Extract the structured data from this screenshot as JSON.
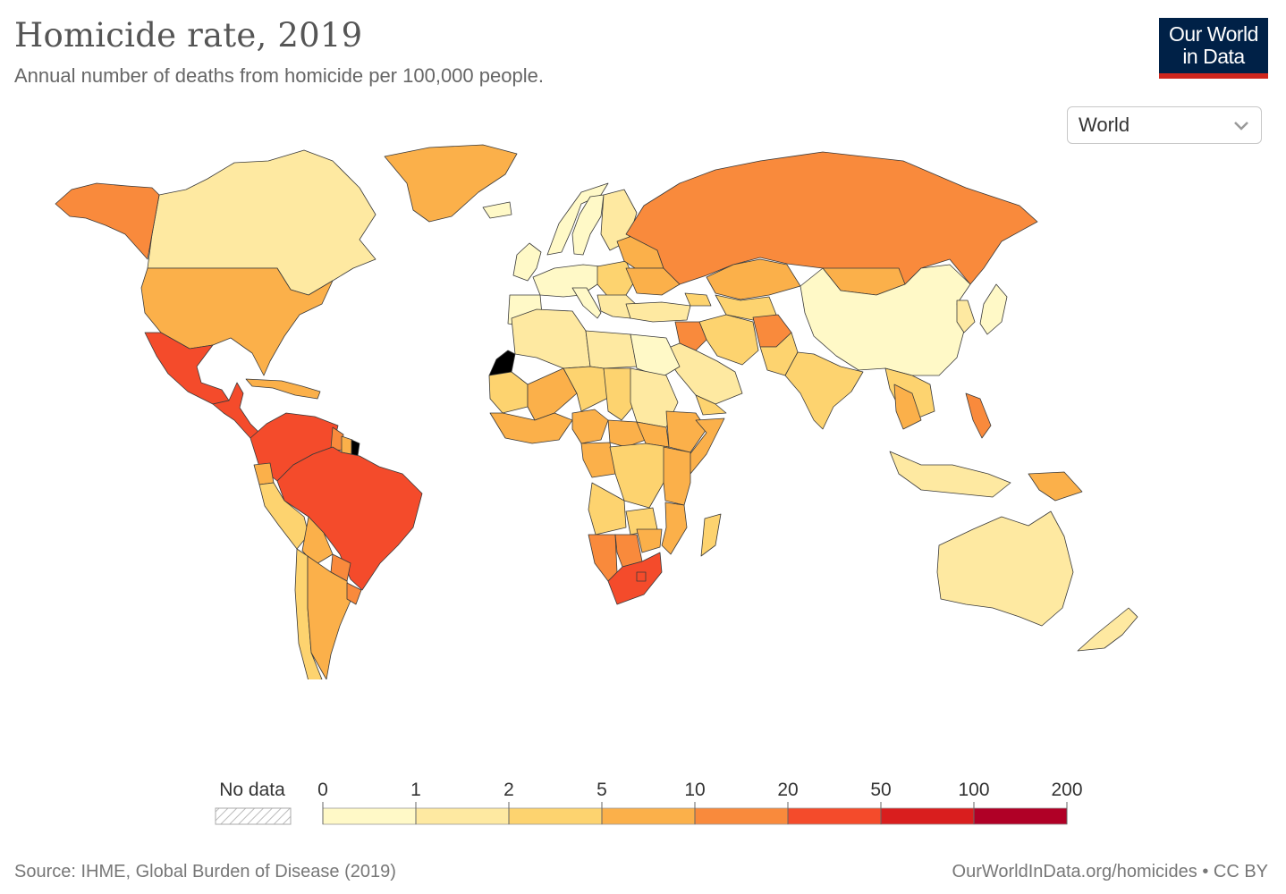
{
  "header": {
    "title": "Homicide rate, 2019",
    "subtitle": "Annual number of deaths from homicide per 100,000 people."
  },
  "logo": {
    "line1": "Our World",
    "line2": "in Data"
  },
  "region_select": {
    "value": "World",
    "icon": "chevron-down-icon"
  },
  "legend": {
    "no_data_label": "No data",
    "bins": [
      "0",
      "1",
      "2",
      "5",
      "10",
      "20",
      "50",
      "100",
      "200"
    ],
    "colors": [
      "#fff9c7",
      "#fee9a1",
      "#fdd36f",
      "#fbb04a",
      "#f98a3c",
      "#f44b2b",
      "#d91e1e",
      "#b00026"
    ]
  },
  "footer": {
    "source": "Source: IHME, Global Burden of Disease (2019)",
    "url": "OurWorldInData.org/homicides",
    "license": "CC BY"
  },
  "colors": {
    "no_data_fill": "#000000",
    "border": "#3a3a3a"
  },
  "map_regions": [
    {
      "name": "Canada",
      "bin": 1
    },
    {
      "name": "Alaska",
      "bin": 4
    },
    {
      "name": "Greenland",
      "bin": 3
    },
    {
      "name": "United States",
      "bin": 3
    },
    {
      "name": "Mexico",
      "bin": 5
    },
    {
      "name": "Central America",
      "bin": 5
    },
    {
      "name": "Caribbean",
      "bin": 3
    },
    {
      "name": "Venezuela & Colombia",
      "bin": 5
    },
    {
      "name": "Guyana",
      "bin": 4
    },
    {
      "name": "Suriname",
      "bin": 3
    },
    {
      "name": "French Guiana",
      "bin": -1
    },
    {
      "name": "Brazil",
      "bin": 5
    },
    {
      "name": "Ecuador",
      "bin": 3
    },
    {
      "name": "Peru",
      "bin": 2
    },
    {
      "name": "Bolivia",
      "bin": 3
    },
    {
      "name": "Paraguay",
      "bin": 4
    },
    {
      "name": "Chile",
      "bin": 2
    },
    {
      "name": "Argentina",
      "bin": 3
    },
    {
      "name": "Uruguay",
      "bin": 4
    },
    {
      "name": "Iceland",
      "bin": 0
    },
    {
      "name": "Norway",
      "bin": 0
    },
    {
      "name": "Sweden",
      "bin": 0
    },
    {
      "name": "Finland",
      "bin": 1
    },
    {
      "name": "UK & Ireland",
      "bin": 0
    },
    {
      "name": "Western Europe",
      "bin": 0
    },
    {
      "name": "Iberia",
      "bin": 0
    },
    {
      "name": "Italy",
      "bin": 0
    },
    {
      "name": "Eastern Europe",
      "bin": 2
    },
    {
      "name": "Baltics & Belarus",
      "bin": 3
    },
    {
      "name": "Ukraine",
      "bin": 3
    },
    {
      "name": "Balkans",
      "bin": 1
    },
    {
      "name": "Russia",
      "bin": 4
    },
    {
      "name": "Kazakhstan",
      "bin": 3
    },
    {
      "name": "Mongolia",
      "bin": 3
    },
    {
      "name": "Central Asia",
      "bin": 2
    },
    {
      "name": "Turkey",
      "bin": 1
    },
    {
      "name": "Caucasus",
      "bin": 2
    },
    {
      "name": "Iran",
      "bin": 2
    },
    {
      "name": "Iraq & Syria",
      "bin": 4
    },
    {
      "name": "Arabian Peninsula",
      "bin": 1
    },
    {
      "name": "Yemen",
      "bin": 2
    },
    {
      "name": "Afghanistan",
      "bin": 4
    },
    {
      "name": "Pakistan",
      "bin": 2
    },
    {
      "name": "India",
      "bin": 2
    },
    {
      "name": "China",
      "bin": 0
    },
    {
      "name": "Korea",
      "bin": 1
    },
    {
      "name": "Japan",
      "bin": 0
    },
    {
      "name": "Southeast Asia",
      "bin": 2
    },
    {
      "name": "Thailand & Cambodia",
      "bin": 3
    },
    {
      "name": "Philippines",
      "bin": 4
    },
    {
      "name": "Indonesia",
      "bin": 1
    },
    {
      "name": "Papua New Guinea",
      "bin": 3
    },
    {
      "name": "Western Sahara",
      "bin": -1
    },
    {
      "name": "Morocco & Algeria",
      "bin": 1
    },
    {
      "name": "Libya",
      "bin": 1
    },
    {
      "name": "Egypt",
      "bin": 0
    },
    {
      "name": "Mauritania",
      "bin": 2
    },
    {
      "name": "Mali",
      "bin": 3
    },
    {
      "name": "Niger",
      "bin": 2
    },
    {
      "name": "Chad",
      "bin": 2
    },
    {
      "name": "Sudan",
      "bin": 1
    },
    {
      "name": "West Africa coast",
      "bin": 3
    },
    {
      "name": "Nigeria",
      "bin": 3
    },
    {
      "name": "Central African Republic",
      "bin": 3
    },
    {
      "name": "South Sudan",
      "bin": 3
    },
    {
      "name": "Ethiopia",
      "bin": 3
    },
    {
      "name": "Somalia",
      "bin": 3
    },
    {
      "name": "Cameroon & Gabon",
      "bin": 3
    },
    {
      "name": "DR Congo",
      "bin": 2
    },
    {
      "name": "Kenya & Tanzania",
      "bin": 3
    },
    {
      "name": "Angola",
      "bin": 2
    },
    {
      "name": "Zambia",
      "bin": 2
    },
    {
      "name": "Mozambique",
      "bin": 3
    },
    {
      "name": "Namibia",
      "bin": 4
    },
    {
      "name": "Botswana",
      "bin": 4
    },
    {
      "name": "Zimbabwe",
      "bin": 3
    },
    {
      "name": "South Africa",
      "bin": 5
    },
    {
      "name": "Lesotho",
      "bin": 5
    },
    {
      "name": "Madagascar",
      "bin": 2
    },
    {
      "name": "Australia",
      "bin": 1
    },
    {
      "name": "New Zealand",
      "bin": 1
    }
  ]
}
